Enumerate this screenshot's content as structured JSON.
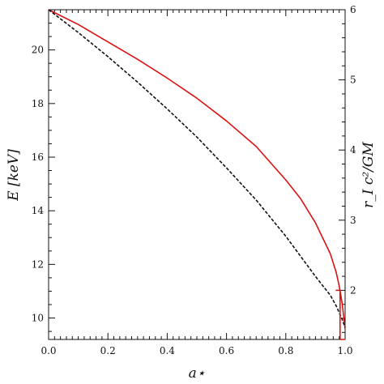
{
  "chart_data": {
    "type": "line",
    "title": "",
    "xlabel": "a⋆",
    "ylabel": "E [keV]",
    "y2label": "r_I c²/GM",
    "xlim": [
      0.0,
      1.0
    ],
    "ylim": [
      9.2,
      21.5
    ],
    "y2lim": [
      1.3,
      6.0
    ],
    "grid": false,
    "legend": "none",
    "xticks": [
      "0.0",
      "0.2",
      "0.4",
      "0.6",
      "0.8",
      "1.0"
    ],
    "yticks": [
      "10",
      "12",
      "14",
      "16",
      "18",
      "20"
    ],
    "y2ticks": [
      "2",
      "3",
      "4",
      "5",
      "6"
    ],
    "series": [
      {
        "axis": "left",
        "style": "solid",
        "color": "#dd1111",
        "x": [
          0.0,
          0.1,
          0.2,
          0.3,
          0.4,
          0.5,
          0.6,
          0.7,
          0.8,
          0.85,
          0.9,
          0.95,
          0.97,
          0.98,
          0.99,
          1.0
        ],
        "y": [
          21.5,
          20.95,
          20.3,
          19.65,
          18.95,
          18.2,
          17.35,
          16.4,
          15.15,
          14.45,
          13.55,
          12.4,
          11.7,
          11.2,
          10.55,
          9.6
        ]
      },
      {
        "axis": "left",
        "style": "dashed",
        "color": "#111111",
        "x": [
          0.0,
          0.1,
          0.2,
          0.3,
          0.4,
          0.5,
          0.6,
          0.7,
          0.8,
          0.85,
          0.9,
          0.95,
          0.97,
          0.98,
          0.99,
          1.0
        ],
        "y": [
          21.5,
          20.65,
          19.75,
          18.8,
          17.8,
          16.75,
          15.6,
          14.4,
          13.05,
          12.3,
          11.55,
          10.85,
          10.45,
          10.2,
          9.95,
          9.65
        ]
      },
      {
        "axis": "right",
        "style": "solid",
        "color": "#dd1111",
        "x": [
          0.968,
          0.983,
          0.983,
          1.0
        ],
        "y": [
          2.0,
          2.0,
          1.3,
          1.3
        ]
      }
    ]
  }
}
